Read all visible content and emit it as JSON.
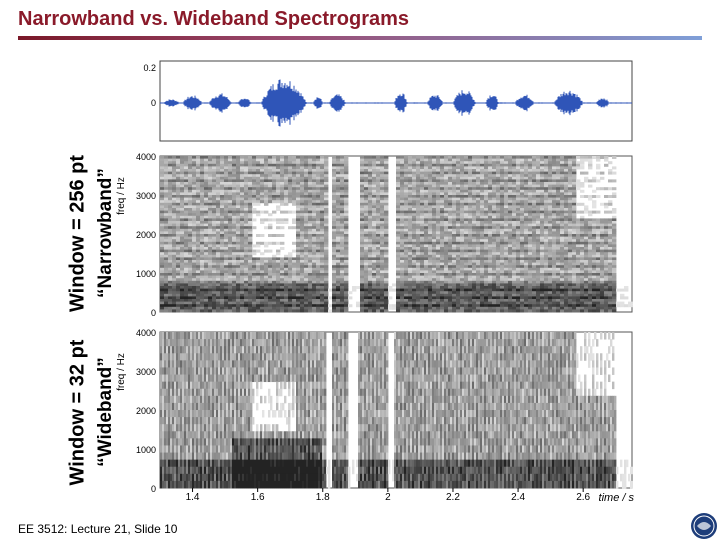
{
  "slide": {
    "title": "Narrowband vs. Wideband Spectrograms",
    "footer": "EE 3512: Lecture 21, Slide 10"
  },
  "chart_data": {
    "type": "heatmap",
    "waveform": {
      "ytick_labels": [
        "0.2",
        "0"
      ]
    },
    "panels": [
      {
        "name_line1": "Window = 256 pt",
        "name_line2": "“Narrowband”",
        "ylabel": "freq / Hz",
        "ytick_labels": [
          "4000",
          "3000",
          "2000",
          "1000",
          "0"
        ]
      },
      {
        "name_line1": "Window = 32 pt",
        "name_line2": "“Wideband”",
        "ylabel": "freq / Hz",
        "ytick_labels": [
          "4000",
          "3000",
          "2000",
          "1000",
          "0"
        ]
      }
    ],
    "x_tick_labels": [
      "1.4",
      "1.6",
      "1.8",
      "2",
      "2.2",
      "2.4",
      "2.6"
    ],
    "xlabel": "time / s",
    "xlim": [
      1.3,
      2.75
    ],
    "colors": {
      "waveform": "#2f55b8",
      "spectrogram_dark": "#000000",
      "spectrogram_light": "#ffffff"
    }
  }
}
